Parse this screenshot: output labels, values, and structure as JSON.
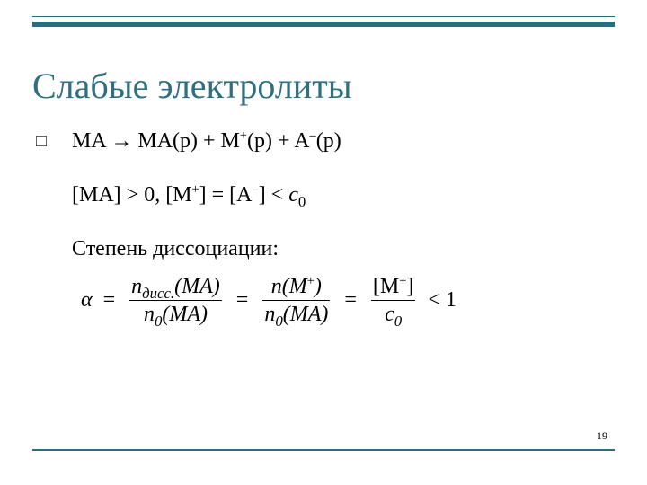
{
  "colors": {
    "rule": "#2a6d7c",
    "title": "#2f6f7f",
    "text": "#000000",
    "bg": "#ffffff"
  },
  "layout": {
    "thinRuleTop": 18,
    "thickRuleTop": 24,
    "bottomRuleTop": 500,
    "pageNumTop": 478
  },
  "title": "Слабые электролиты",
  "body": {
    "line1": {
      "pre": "MA → MA(р) + M",
      "sup1": "+",
      "mid": "(р) + A",
      "sup2": "–",
      "post": "(р)"
    },
    "line2": {
      "a": "[MA] > 0, [M",
      "sup1": "+",
      "b": "] = [A",
      "sup2": "–",
      "c": "] < ",
      "cvar": "c",
      "csub": "0"
    },
    "line3": "Степень диссоциации:"
  },
  "formula": {
    "alpha": "α",
    "eq": "=",
    "lt1": "< 1",
    "f1_num_a": "n",
    "f1_num_sub": "дисс.",
    "f1_num_b": "(MA)",
    "f1_den_a": "n",
    "f1_den_sub": "0",
    "f1_den_b": "(MA)",
    "f2_num_a": "n(M",
    "f2_num_sup": "+",
    "f2_num_b": ")",
    "f2_den_a": "n",
    "f2_den_sub": "0",
    "f2_den_b": "(MA)",
    "f3_num_a": "[M",
    "f3_num_sup": "+",
    "f3_num_b": "]",
    "f3_den_a": "c",
    "f3_den_sub": "0"
  },
  "pageNumber": "19"
}
